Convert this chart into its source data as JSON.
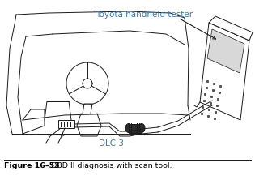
{
  "title_label": "Toyota handheld tester",
  "title_color": "#3878b4",
  "dlc_label": "DLC 3",
  "dlc_color": "#3878b4",
  "caption_bold": "Figure 16–53",
  "caption_text": "OBD II diagnosis with scan tool.",
  "caption_color": "#000000",
  "bg_color": "#ffffff",
  "fig_width": 3.15,
  "fig_height": 2.22,
  "dpi": 100,
  "line_color": "#1a1a1a",
  "lw": 0.7
}
